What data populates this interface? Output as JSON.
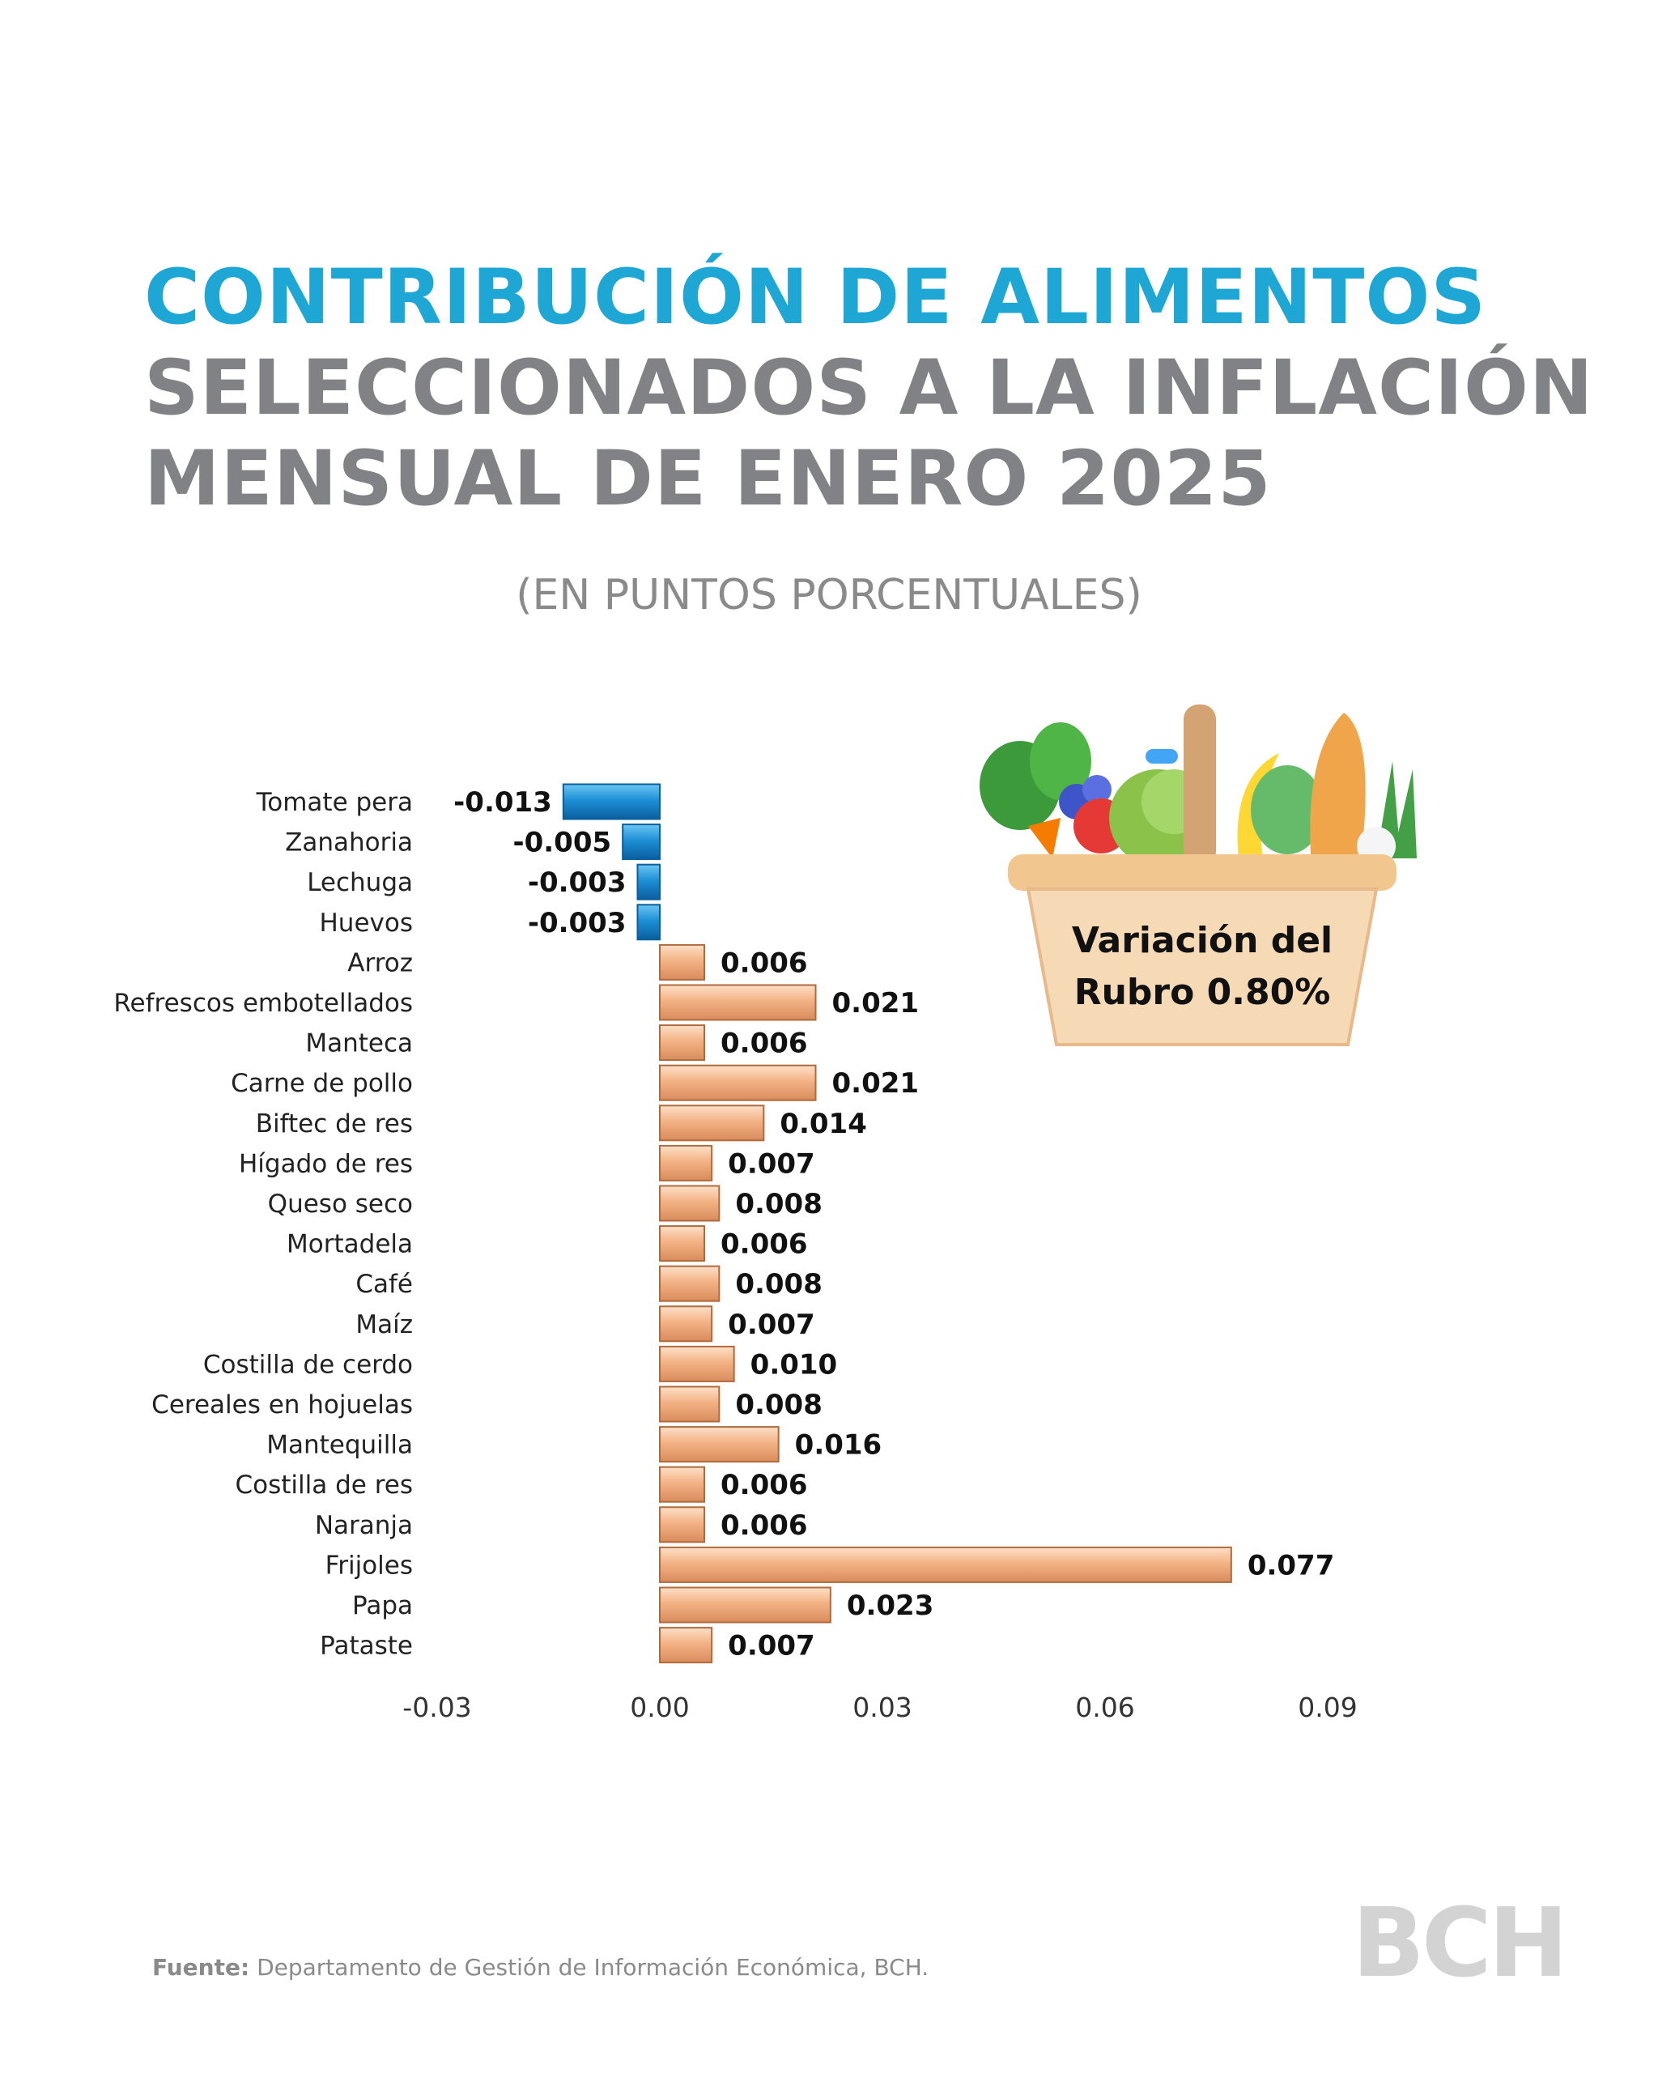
{
  "header": {
    "title_line1": "CONTRIBUCIÓN DE ALIMENTOS",
    "title_line2": "SELECCIONADOS A LA INFLACIÓN",
    "title_line3": "MENSUAL DE ENERO 2025",
    "subtitle": "(EN PUNTOS PORCENTUALES)"
  },
  "basket": {
    "line1": "Variación del",
    "line2": "Rubro 0.80%"
  },
  "footer": {
    "source_label": "Fuente:",
    "source_text": "Departamento de Gestión de Información Económica, BCH.",
    "logo": "BCH"
  },
  "colors": {
    "title_blue": "#1ea7d4",
    "title_gray": "#808285",
    "negative_bar": "#1e90d6",
    "positive_bar": "#f3b285"
  },
  "chart_data": {
    "type": "bar",
    "orientation": "horizontal",
    "categories": [
      "Tomate pera",
      "Zanahoria",
      "Lechuga",
      "Huevos",
      "Arroz",
      "Refrescos embotellados",
      "Manteca",
      "Carne de pollo",
      "Biftec de res",
      "Hígado de res",
      "Queso seco",
      "Mortadela",
      "Café",
      "Maíz",
      "Costilla de cerdo",
      "Cereales en hojuelas",
      "Mantequilla",
      "Costilla de res",
      "Naranja",
      "Frijoles",
      "Papa",
      "Pataste"
    ],
    "values": [
      -0.013,
      -0.005,
      -0.003,
      -0.003,
      0.006,
      0.021,
      0.006,
      0.021,
      0.014,
      0.007,
      0.008,
      0.006,
      0.008,
      0.007,
      0.01,
      0.008,
      0.016,
      0.006,
      0.006,
      0.077,
      0.023,
      0.007
    ],
    "value_labels": [
      "-0.013",
      "-0.005",
      "-0.003",
      "-0.003",
      "0.006",
      "0.021",
      "0.006",
      "0.021",
      "0.014",
      "0.007",
      "0.008",
      "0.006",
      "0.008",
      "0.007",
      "0.010",
      "0.008",
      "0.016",
      "0.006",
      "0.006",
      "0.077",
      "0.023",
      "0.007"
    ],
    "xlim": [
      -0.03,
      0.09
    ],
    "x_ticks": [
      -0.03,
      0.0,
      0.03,
      0.06,
      0.09
    ],
    "x_tick_labels": [
      "-0.03",
      "0.00",
      "0.03",
      "0.06",
      "0.09"
    ],
    "grid": false
  }
}
